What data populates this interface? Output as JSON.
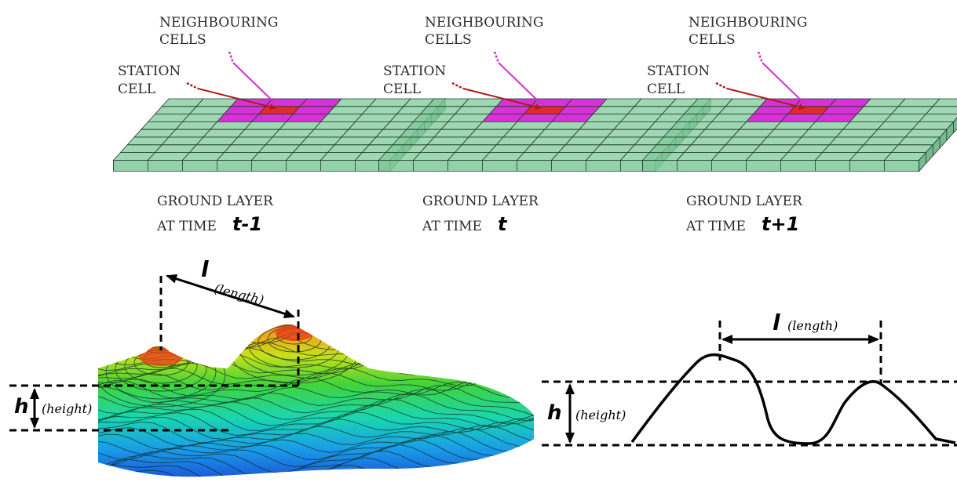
{
  "panels": [
    {
      "neighbouring_line1": "NEIGHBOURING",
      "neighbouring_line2": "CELLS",
      "station_line1": "STATION",
      "station_line2": "CELL",
      "ground_line1": "GROUND LAYER",
      "time_prefix": "AT TIME ",
      "time_symbol": "t-1"
    },
    {
      "neighbouring_line1": "NEIGHBOURING",
      "neighbouring_line2": "CELLS",
      "station_line1": "STATION",
      "station_line2": "CELL",
      "ground_line1": "GROUND LAYER",
      "time_prefix": "AT TIME ",
      "time_symbol": "t"
    },
    {
      "neighbouring_line1": "NEIGHBOURING",
      "neighbouring_line2": "CELLS",
      "station_line1": "STATION",
      "station_line2": "CELL",
      "ground_line1": "GROUND LAYER",
      "time_prefix": "AT TIME ",
      "time_symbol": "t+1"
    }
  ],
  "terrain": {
    "length_symbol": "l",
    "length_word": "(length)",
    "height_symbol": "h",
    "height_word": "(height)"
  },
  "profile": {
    "length_symbol": "l",
    "length_word": "(length)",
    "height_symbol": "h",
    "height_word": "(height)"
  },
  "colors": {
    "cell_green": "#7fc99a",
    "cell_edge": "#1f3d2a",
    "neighbour_magenta": "#d61fd6",
    "station_red": "#e01818",
    "arrow_magenta": "#cc33cc",
    "arrow_red": "#b01818"
  }
}
